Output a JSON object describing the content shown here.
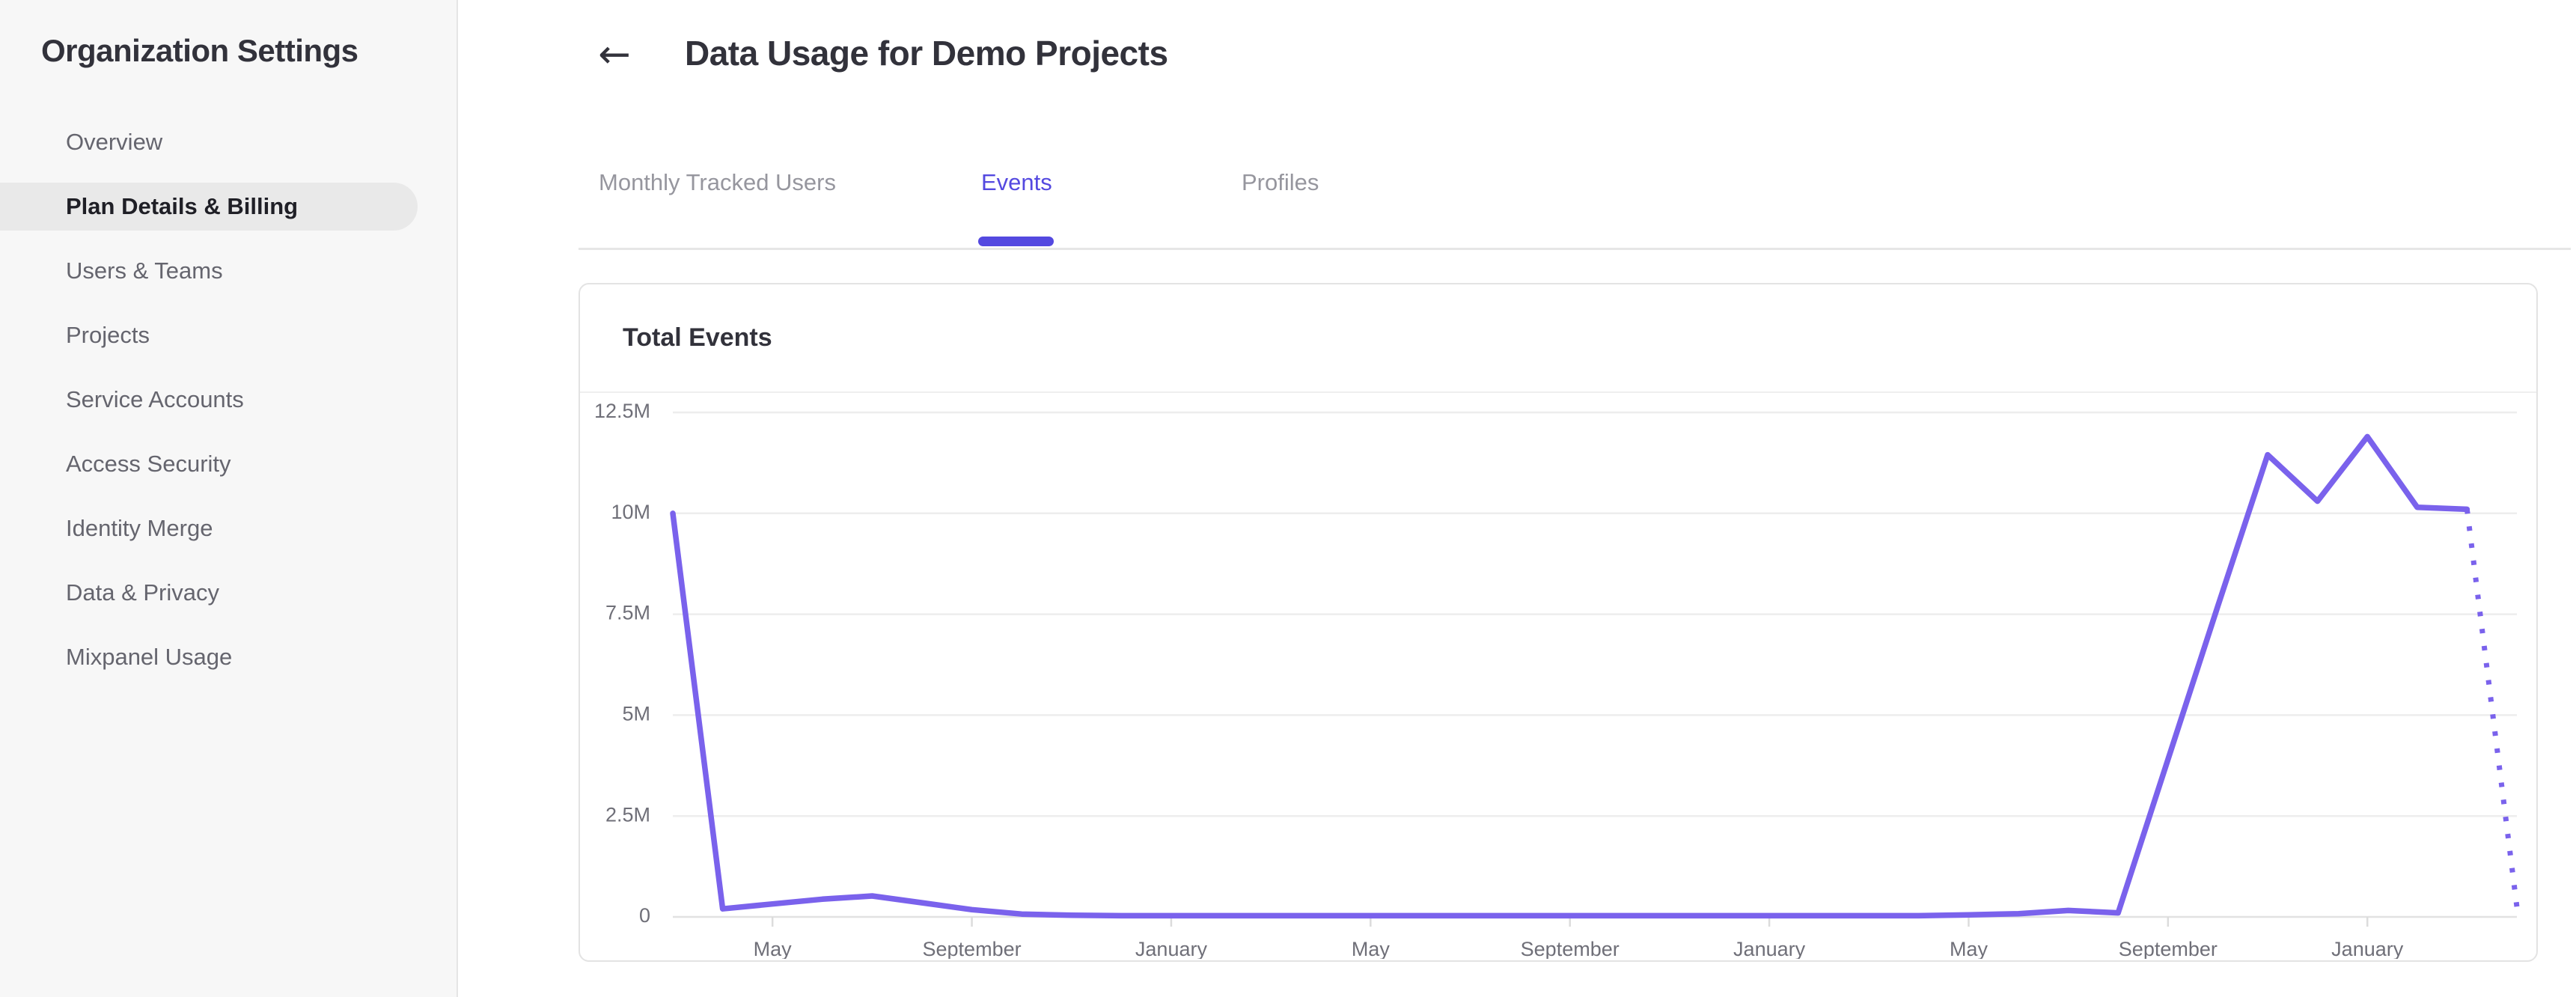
{
  "sidebar": {
    "title": "Organization Settings",
    "items": [
      {
        "label": "Overview",
        "selected": false
      },
      {
        "label": "Plan Details & Billing",
        "selected": true
      },
      {
        "label": "Users & Teams",
        "selected": false
      },
      {
        "label": "Projects",
        "selected": false
      },
      {
        "label": "Service Accounts",
        "selected": false
      },
      {
        "label": "Access Security",
        "selected": false
      },
      {
        "label": "Identity Merge",
        "selected": false
      },
      {
        "label": "Data & Privacy",
        "selected": false
      },
      {
        "label": "Mixpanel Usage",
        "selected": false
      }
    ]
  },
  "header": {
    "back_icon": "←",
    "title": "Data Usage for Demo Projects"
  },
  "tabs": [
    {
      "label": "Monthly Tracked Users",
      "active": false
    },
    {
      "label": "Events",
      "active": true
    },
    {
      "label": "Profiles",
      "active": false
    }
  ],
  "colors": {
    "accent": "#5449e0",
    "chart_line": "#7a62ec",
    "sidebar_selected_bg": "#e9e9e9"
  },
  "chart_data": {
    "type": "line",
    "title": "Total Events",
    "ylabel": "",
    "xlabel": "",
    "ylim_millions": [
      0,
      13.0
    ],
    "grid": true,
    "legend_position": "none",
    "y_axis": {
      "tick_labels": [
        "12.5M",
        "10M",
        "7.5M",
        "5M",
        "2.5M",
        "0"
      ],
      "tick_values_millions": [
        12.5,
        10,
        7.5,
        5,
        2.5,
        0
      ]
    },
    "x_axis": {
      "tick_labels": [
        "May",
        "September",
        "January",
        "May",
        "September",
        "January",
        "May",
        "September",
        "January"
      ],
      "tick_month_indices": [
        2,
        6,
        10,
        14,
        18,
        22,
        26,
        30,
        34
      ],
      "total_months": 38
    },
    "series": [
      {
        "name": "total-events",
        "style": "solid",
        "start_month_index": 0,
        "values_millions": [
          10.0,
          0.2,
          0.32,
          0.44,
          0.52,
          0.35,
          0.18,
          0.07,
          0.04,
          0.03,
          0.03,
          0.03,
          0.03,
          0.03,
          0.03,
          0.03,
          0.03,
          0.03,
          0.03,
          0.03,
          0.03,
          0.03,
          0.03,
          0.03,
          0.03,
          0.03,
          0.05,
          0.08,
          0.16,
          0.1,
          3.9,
          7.7,
          11.45,
          10.3,
          11.9,
          10.15,
          10.1
        ]
      },
      {
        "name": "projection",
        "style": "dotted",
        "start_month_index": 36,
        "values_millions": [
          10.1,
          0.25
        ]
      }
    ]
  }
}
